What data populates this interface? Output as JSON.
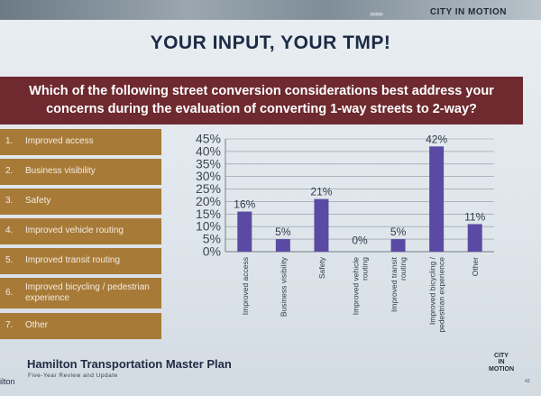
{
  "topbar": {
    "brand": "CITY IN MOTION",
    "chevrons": "›››››››"
  },
  "title": "YOUR INPUT, YOUR TMP!",
  "question": "Which of the following street conversion considerations best address your concerns during the evaluation of converting 1-way streets to 2-way?",
  "options": [
    {
      "num": "1.",
      "label": "Improved access"
    },
    {
      "num": "2.",
      "label": "Business visibility"
    },
    {
      "num": "3.",
      "label": "Safety"
    },
    {
      "num": "4.",
      "label": "Improved vehicle routing"
    },
    {
      "num": "5.",
      "label": "Improved transit routing"
    },
    {
      "num": "6.",
      "label": "Improved bicycling / pedestrian experience"
    },
    {
      "num": "7.",
      "label": "Other"
    }
  ],
  "colors": {
    "bar": "#5b4aa3",
    "option_bg": "#a77a38",
    "question_bg": "#6e2a2f",
    "title": "#1c2b45"
  },
  "chart_data": {
    "type": "bar",
    "categories": [
      "Improved access",
      "Business visibility",
      "Safety",
      "Improved vehicle routing",
      "Improved transit routing",
      "Improved bicycling / pedestrian experience",
      "Other"
    ],
    "tick_labels": [
      [
        "Improved access"
      ],
      [
        "Business visibility"
      ],
      [
        "Safety"
      ],
      [
        "Improved vehicle",
        "routing"
      ],
      [
        "Improved transit",
        "routing"
      ],
      [
        "Improved bicycling /",
        "pedestrian experience"
      ],
      [
        "Other"
      ]
    ],
    "values": [
      16,
      5,
      21,
      0,
      5,
      42,
      11
    ],
    "data_labels": [
      "16%",
      "5%",
      "21%",
      "0%",
      "5%",
      "42%",
      "11%"
    ],
    "yticks": [
      "0%",
      "5%",
      "10%",
      "15%",
      "20%",
      "25%",
      "30%",
      "35%",
      "40%",
      "45%"
    ],
    "ylim": [
      0,
      45
    ],
    "grid": true
  },
  "footer": {
    "title": "Hamilton Transportation Master Plan",
    "subtitle": "Five-Year Review and Update",
    "left_fragment": "ilton",
    "logo_lines": [
      "CITY",
      "IN",
      "MOTION"
    ],
    "page": "43"
  }
}
